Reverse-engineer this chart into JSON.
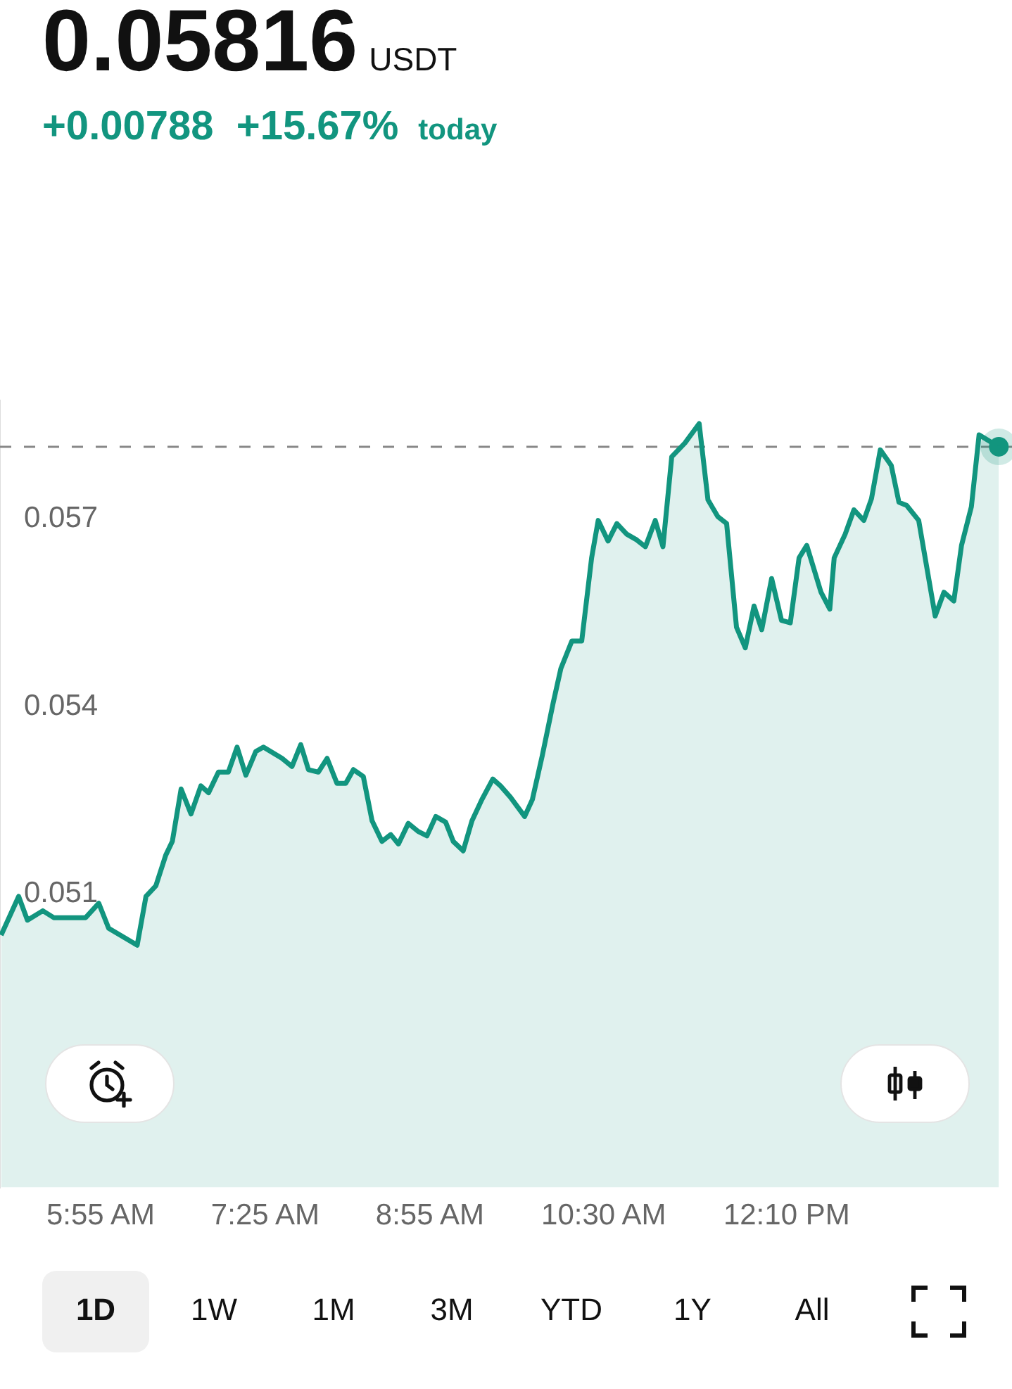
{
  "chart_data": {
    "type": "area",
    "title": "0.05816",
    "subtitle": "+0.00788  +15.67%",
    "annotations": [
      "USDT",
      "today",
      "1D",
      "1W",
      "1M",
      "3M",
      "YTD",
      "1Y",
      "All"
    ],
    "x": [
      5.01,
      5.17,
      5.25,
      5.39,
      5.49,
      5.78,
      5.9,
      5.99,
      6.25,
      6.33,
      6.42,
      6.51,
      6.57,
      6.65,
      6.74,
      6.83,
      6.9,
      6.99,
      7.08,
      7.16,
      7.24,
      7.33,
      7.4,
      7.57,
      7.66,
      7.74,
      7.81,
      7.9,
      7.98,
      8.07,
      8.15,
      8.22,
      8.31,
      8.39,
      8.48,
      8.56,
      8.63,
      8.72,
      8.81,
      8.89,
      8.97,
      9.06,
      9.13,
      9.22,
      9.3,
      9.39,
      9.49,
      9.56,
      9.65,
      9.78,
      9.85,
      9.94,
      10.04,
      10.11,
      10.21,
      10.3,
      10.39,
      10.45,
      10.54,
      10.62,
      10.71,
      10.8,
      10.88,
      10.97,
      11.04,
      11.12,
      11.24,
      11.37,
      11.45,
      11.54,
      11.62,
      11.71,
      11.79,
      11.87,
      11.94,
      12.03,
      12.12,
      12.2,
      12.28,
      12.35,
      12.48,
      12.56,
      12.6,
      12.7,
      12.78,
      12.87,
      12.94,
      13.02,
      13.12,
      13.19,
      13.26,
      13.37,
      13.52,
      13.6,
      13.69,
      13.76,
      13.85,
      13.92,
      14.1
    ],
    "series": [
      {
        "color": "#12957f",
        "values": [
          0.05034,
          0.05096,
          0.05058,
          0.05073,
          0.05062,
          0.05062,
          0.05085,
          0.05045,
          0.05018,
          0.05096,
          0.05113,
          0.05162,
          0.05184,
          0.05268,
          0.05228,
          0.05273,
          0.05262,
          0.05295,
          0.05295,
          0.05335,
          0.0529,
          0.05328,
          0.05335,
          0.05317,
          0.05304,
          0.05339,
          0.05299,
          0.05295,
          0.05317,
          0.05277,
          0.05277,
          0.05299,
          0.05288,
          0.05217,
          0.05184,
          0.05195,
          0.0518,
          0.05213,
          0.052,
          0.05193,
          0.05224,
          0.05215,
          0.05184,
          0.05169,
          0.05217,
          0.05251,
          0.05284,
          0.05273,
          0.05255,
          0.05224,
          0.05251,
          0.05321,
          0.05406,
          0.05461,
          0.05505,
          0.05505,
          0.05638,
          0.05698,
          0.05665,
          0.05693,
          0.05676,
          0.05667,
          0.05656,
          0.05698,
          0.05656,
          0.058,
          0.05822,
          0.05853,
          0.05731,
          0.05704,
          0.05693,
          0.05527,
          0.05494,
          0.05561,
          0.05523,
          0.05605,
          0.05538,
          0.05534,
          0.05638,
          0.05658,
          0.05583,
          0.05556,
          0.05638,
          0.05676,
          0.05715,
          0.05698,
          0.05733,
          0.05811,
          0.05786,
          0.05727,
          0.05722,
          0.05698,
          0.05545,
          0.05583,
          0.05569,
          0.05658,
          0.0572,
          0.05835,
          0.05816
        ]
      }
    ],
    "xlim": [
      5.0,
      14.22
    ],
    "xticks": [
      {
        "value": 5.9167,
        "label": "5:55 AM"
      },
      {
        "value": 7.4167,
        "label": "7:25 AM"
      },
      {
        "value": 8.9167,
        "label": "8:55 AM"
      },
      {
        "value": 10.5,
        "label": "10:30 AM"
      },
      {
        "value": 12.1667,
        "label": "12:10 PM"
      }
    ],
    "ylim": [
      0.0463,
      0.0589
    ],
    "yticks": [
      0.051,
      0.054,
      0.057
    ],
    "ref_lines": [
      {
        "axis": "y",
        "value": 0.05816,
        "color": "#888888",
        "line_style": "dashed"
      }
    ],
    "grid": false,
    "legend": false
  }
}
